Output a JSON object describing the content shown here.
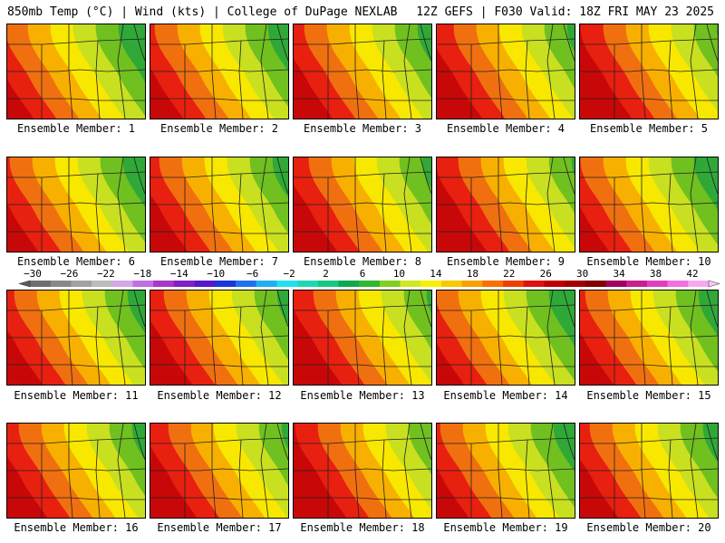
{
  "header": {
    "left": "850mb Temp (°C) | Wind (kts) | College of DuPage NEXLAB",
    "right": "12Z GEFS | F030 Valid: 18Z FRI MAY 23 2025"
  },
  "member_prefix": "Ensemble Member:",
  "members": [
    {
      "id": "1",
      "label": "Ensemble Member: 1"
    },
    {
      "id": "2",
      "label": "Ensemble Member: 2"
    },
    {
      "id": "3",
      "label": "Ensemble Member: 3"
    },
    {
      "id": "4",
      "label": "Ensemble Member: 4"
    },
    {
      "id": "5",
      "label": "Ensemble Member: 5"
    },
    {
      "id": "6",
      "label": "Ensemble Member: 6"
    },
    {
      "id": "7",
      "label": "Ensemble Member: 7"
    },
    {
      "id": "8",
      "label": "Ensemble Member: 8"
    },
    {
      "id": "9",
      "label": "Ensemble Member: 9"
    },
    {
      "id": "10",
      "label": "Ensemble Member: 10"
    },
    {
      "id": "11",
      "label": "Ensemble Member: 11"
    },
    {
      "id": "12",
      "label": "Ensemble Member: 12"
    },
    {
      "id": "13",
      "label": "Ensemble Member: 13"
    },
    {
      "id": "14",
      "label": "Ensemble Member: 14"
    },
    {
      "id": "15",
      "label": "Ensemble Member: 15"
    },
    {
      "id": "16",
      "label": "Ensemble Member: 16"
    },
    {
      "id": "17",
      "label": "Ensemble Member: 17"
    },
    {
      "id": "18",
      "label": "Ensemble Member: 18"
    },
    {
      "id": "19",
      "label": "Ensemble Member: 19"
    },
    {
      "id": "20",
      "label": "Ensemble Member: 20"
    }
  ],
  "colorbar": {
    "labels": [
      "−30",
      "−26",
      "−22",
      "−18",
      "−14",
      "−10",
      "−6",
      "−2",
      "2",
      "6",
      "10",
      "14",
      "18",
      "22",
      "26",
      "30",
      "34",
      "38",
      "42"
    ],
    "colors": [
      "#6e6e6e",
      "#888888",
      "#a2a2a2",
      "#bcbcbc",
      "#d2a8e8",
      "#c070e0",
      "#a838c8",
      "#8020c0",
      "#5818c8",
      "#1838d8",
      "#2070f0",
      "#20b0f0",
      "#20e0f0",
      "#20d8b0",
      "#18c880",
      "#10a850",
      "#30b830",
      "#80d020",
      "#d0e820",
      "#f8f000",
      "#f8c800",
      "#f8a000",
      "#f87000",
      "#f04000",
      "#e01010",
      "#c00000",
      "#a00000",
      "#800000",
      "#a00060",
      "#c82090",
      "#e040c0",
      "#f070e0",
      "#f8a8f0"
    ]
  }
}
